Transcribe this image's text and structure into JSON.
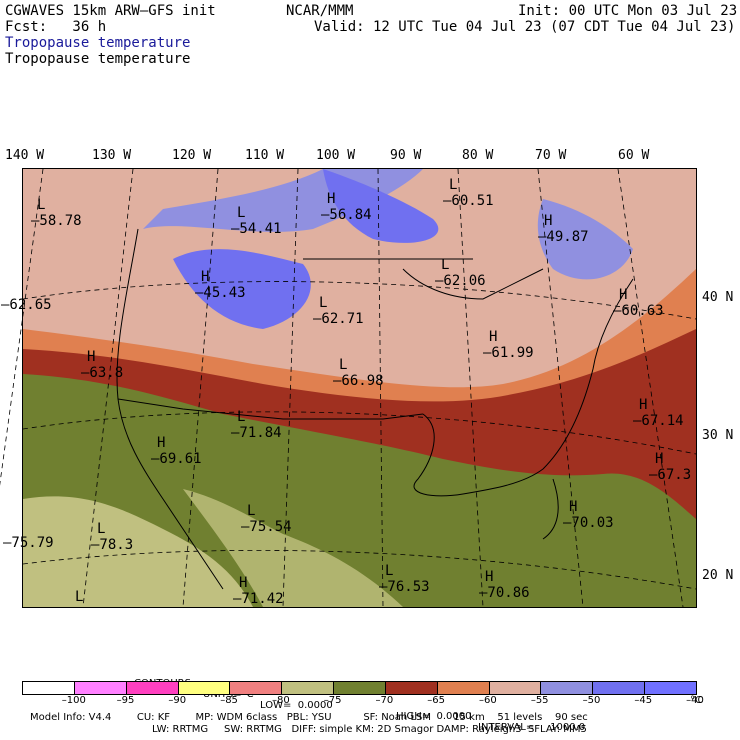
{
  "header": {
    "model": "CGWAVES 15km ARW–GFS init",
    "org": "NCAR/MMM",
    "init": "Init: 00 UTC Mon 03 Jul 23",
    "fcst": "Fcst:   36 h",
    "valid": "Valid: 12 UTC Tue 04 Jul 23 (07 CDT Tue 04 Jul 23)",
    "field_title_1": "Tropopause temperature",
    "field_title_2": "Tropopause temperature"
  },
  "longitude_labels": [
    "140 W",
    "130 W",
    "120 W",
    "110 W",
    "100 W",
    "90 W",
    "80 W",
    "70 W",
    "60 W"
  ],
  "latitude_labels": [
    "40 N",
    "30 N",
    "20 N"
  ],
  "centers": [
    {
      "letter": "L",
      "value": "–58.78"
    },
    {
      "letter": "L",
      "value": "–54.41"
    },
    {
      "letter": "H",
      "value": "–56.84"
    },
    {
      "letter": "L",
      "value": "–60.51"
    },
    {
      "letter": "H",
      "value": "–49.87"
    },
    {
      "letter": "H",
      "value": "–45.43"
    },
    {
      "letter": "L",
      "value": "–62.71"
    },
    {
      "letter": "L",
      "value": "–62.06"
    },
    {
      "letter": "H",
      "value": "–60.63"
    },
    {
      "letter": "",
      "value": "–62.65"
    },
    {
      "letter": "H",
      "value": "–63.8"
    },
    {
      "letter": "L",
      "value": "–66.98"
    },
    {
      "letter": "H",
      "value": "–61.99"
    },
    {
      "letter": "L",
      "value": "–71.84"
    },
    {
      "letter": "H",
      "value": "–67.14"
    },
    {
      "letter": "H",
      "value": "–69.61"
    },
    {
      "letter": "H",
      "value": "–67.3"
    },
    {
      "letter": "L",
      "value": "–75.54"
    },
    {
      "letter": "H",
      "value": "–70.03"
    },
    {
      "letter": "L",
      "value": "–78.3"
    },
    {
      "letter": "",
      "value": "–75.79"
    },
    {
      "letter": "L",
      "value": "–76.53"
    },
    {
      "letter": "H",
      "value": "–70.86"
    },
    {
      "letter": "H",
      "value": "–71.42"
    },
    {
      "letter": "L",
      "value": ""
    }
  ],
  "contour_info": {
    "contours": "CONTOURS:",
    "units": "UNITS=°C",
    "low": "LOW=  0.0000",
    "high": "HIGH=  0.0000",
    "interval": "INTERVAL=     1000.0"
  },
  "legend": {
    "colors": [
      "#ffffff",
      "#ff80ff",
      "#ff40c0",
      "#ffff80",
      "#f08080",
      "#c0c080",
      "#708030",
      "#a03020",
      "#e08050",
      "#e0b0a0",
      "#9090e0",
      "#7070f0",
      "#7070ff"
    ],
    "ticks": [
      "–100",
      "–95",
      "–90",
      "–85",
      "–80",
      "–75",
      "–70",
      "–65",
      "–60",
      "–55",
      "–50",
      "–45",
      "–40"
    ],
    "unit": "°C"
  },
  "footer": {
    "line1": "Model Info: V4.4        CU: KF        MP: WDM 6class   PBL: YSU          SF: Noah LSM       15 km    51 levels    90 sec",
    "line2": "LW: RRTMG     SW: RRTMG   DIFF: simple KM: 2D Smagor DAMP: Rayleigh3  SFLAY: MM5"
  }
}
